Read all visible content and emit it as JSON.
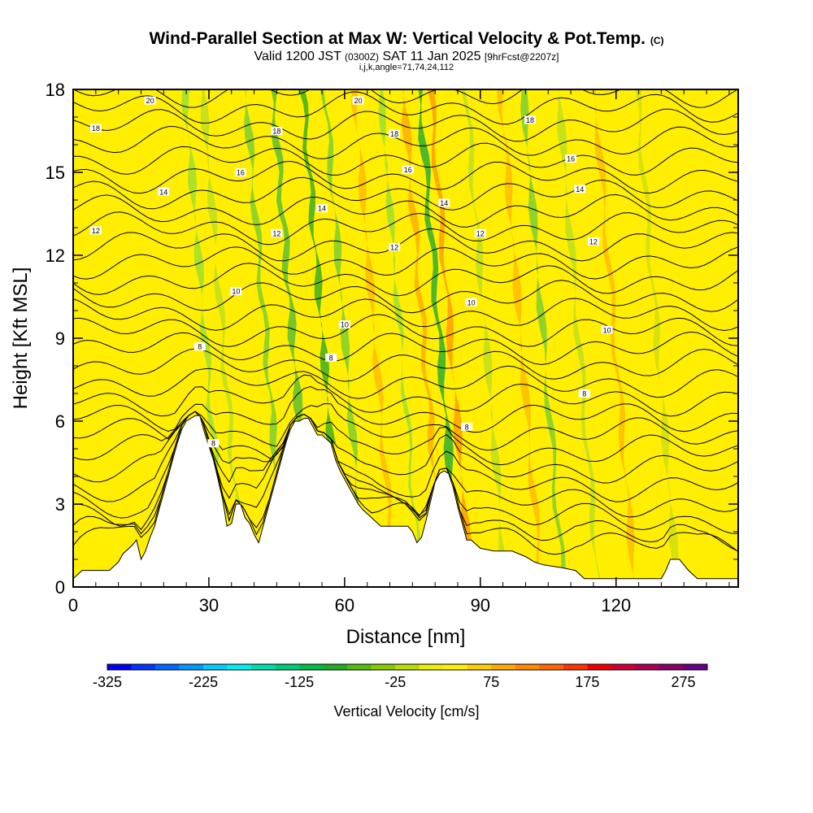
{
  "chart_data": {
    "type": "heatmap",
    "title": "Wind-Parallel Section at Max W: Vertical Velocity & Pot.Temp.",
    "title_tag": "(C)",
    "subtitle_main": "Valid 1200 JST",
    "subtitle_utc": "(0300Z)",
    "subtitle_date": "SAT 11 Jan 2025",
    "subtitle_fcst": "[9hrFcst@2207z]",
    "info_line": "i,j,k,angle=71,74,24,112",
    "xlabel": "Distance [nm]",
    "ylabel": "Height [Kft MSL]",
    "xlim": [
      0,
      147
    ],
    "ylim": [
      0,
      18
    ],
    "x_ticks": [
      "0",
      "30",
      "60",
      "90",
      "120"
    ],
    "x_tick_values": [
      0,
      30,
      60,
      90,
      120
    ],
    "y_ticks": [
      "0",
      "3",
      "6",
      "9",
      "12",
      "15",
      "18"
    ],
    "y_tick_values": [
      0,
      3,
      6,
      9,
      12,
      15,
      18
    ],
    "background_color": "#ffee00",
    "terrain": [
      [
        0,
        0.3
      ],
      [
        2,
        0.6
      ],
      [
        8,
        0.6
      ],
      [
        10,
        0.9
      ],
      [
        11,
        1.2
      ],
      [
        13,
        1.5
      ],
      [
        14,
        1.7
      ],
      [
        15,
        1.0
      ],
      [
        16,
        1.3
      ],
      [
        17,
        1.8
      ],
      [
        18,
        2.2
      ],
      [
        19,
        2.8
      ],
      [
        20,
        3.4
      ],
      [
        21,
        4.0
      ],
      [
        22,
        4.6
      ],
      [
        23,
        5.2
      ],
      [
        24,
        5.7
      ],
      [
        25,
        6.0
      ],
      [
        26,
        6.1
      ],
      [
        27,
        6.2
      ],
      [
        28,
        6.2
      ],
      [
        29,
        5.6
      ],
      [
        30,
        5.1
      ],
      [
        31,
        4.6
      ],
      [
        32,
        3.9
      ],
      [
        33,
        3.2
      ],
      [
        34,
        2.2
      ],
      [
        35,
        2.3
      ],
      [
        36,
        3.0
      ],
      [
        37,
        3.0
      ],
      [
        38,
        2.5
      ],
      [
        39,
        2.3
      ],
      [
        40,
        1.9
      ],
      [
        41,
        1.6
      ],
      [
        42,
        2.2
      ],
      [
        43,
        2.8
      ],
      [
        44,
        3.4
      ],
      [
        45,
        4.0
      ],
      [
        46,
        4.6
      ],
      [
        47,
        5.2
      ],
      [
        48,
        5.7
      ],
      [
        49,
        6.0
      ],
      [
        50,
        6.0
      ],
      [
        51,
        6.1
      ],
      [
        52,
        6.1
      ],
      [
        53,
        5.8
      ],
      [
        54,
        5.5
      ],
      [
        55,
        5.5
      ],
      [
        57,
        5.2
      ],
      [
        58,
        4.6
      ],
      [
        59,
        4.2
      ],
      [
        60,
        3.9
      ],
      [
        61,
        3.6
      ],
      [
        62,
        3.3
      ],
      [
        63,
        3.0
      ],
      [
        64,
        2.8
      ],
      [
        66,
        2.5
      ],
      [
        68,
        2.2
      ],
      [
        72,
        2.2
      ],
      [
        74,
        2.2
      ],
      [
        75,
        2.0
      ],
      [
        76,
        1.6
      ],
      [
        77,
        1.8
      ],
      [
        78,
        2.4
      ],
      [
        79,
        3.1
      ],
      [
        80,
        3.8
      ],
      [
        81,
        4.1
      ],
      [
        82,
        4.2
      ],
      [
        83,
        4.1
      ],
      [
        84,
        3.6
      ],
      [
        85,
        2.9
      ],
      [
        86,
        2.3
      ],
      [
        87,
        1.7
      ],
      [
        88,
        1.7
      ],
      [
        90,
        1.4
      ],
      [
        93,
        1.3
      ],
      [
        97,
        1.3
      ],
      [
        100,
        1.1
      ],
      [
        102,
        0.9
      ],
      [
        104,
        0.8
      ],
      [
        108,
        0.7
      ],
      [
        111,
        0.6
      ],
      [
        113,
        0.3
      ],
      [
        130,
        0.3
      ],
      [
        131,
        0.6
      ],
      [
        132,
        1.0
      ],
      [
        134,
        1.0
      ],
      [
        135,
        0.8
      ],
      [
        136,
        0.6
      ],
      [
        138,
        0.3
      ],
      [
        147,
        0.3
      ]
    ],
    "bands": [
      {
        "x": 31.5,
        "w": 0.9,
        "color": "#99dd33"
      },
      {
        "x": 36,
        "w": 0.8,
        "color": "#bbdd22"
      },
      {
        "x": 45,
        "w": 0.9,
        "color": "#77cc33"
      },
      {
        "x": 50,
        "w": 1.1,
        "color": "#55bb33"
      },
      {
        "x": 57,
        "w": 0.9,
        "color": "#33aa22"
      },
      {
        "x": 63,
        "w": 0.8,
        "color": "#77cc33"
      },
      {
        "x": 70,
        "w": 0.8,
        "color": "#ffb800"
      },
      {
        "x": 76,
        "w": 0.6,
        "color": "#99dd33"
      },
      {
        "x": 80,
        "w": 0.9,
        "color": "#ffaa00"
      },
      {
        "x": 83.5,
        "w": 1.1,
        "color": "#22aa33"
      },
      {
        "x": 87,
        "w": 0.9,
        "color": "#ff9900"
      },
      {
        "x": 95,
        "w": 0.8,
        "color": "#bbdd22"
      },
      {
        "x": 103,
        "w": 0.8,
        "color": "#ffb800"
      },
      {
        "x": 108,
        "w": 0.8,
        "color": "#77cc33"
      },
      {
        "x": 116,
        "w": 0.8,
        "color": "#bbdd22"
      },
      {
        "x": 124,
        "w": 0.8,
        "color": "#ffb800"
      },
      {
        "x": 133,
        "w": 0.8,
        "color": "#ccdd11"
      }
    ],
    "contour_labels": [
      {
        "text": "20",
        "x": 17,
        "y": 17.6
      },
      {
        "text": "20",
        "x": 63,
        "y": 17.6
      },
      {
        "text": "18",
        "x": 5,
        "y": 16.6
      },
      {
        "text": "18",
        "x": 45,
        "y": 16.5
      },
      {
        "text": "18",
        "x": 71,
        "y": 16.4
      },
      {
        "text": "18",
        "x": 101,
        "y": 16.9
      },
      {
        "text": "16",
        "x": 37,
        "y": 15.0
      },
      {
        "text": "16",
        "x": 74,
        "y": 15.1
      },
      {
        "text": "16",
        "x": 110,
        "y": 15.5
      },
      {
        "text": "14",
        "x": 20,
        "y": 14.3
      },
      {
        "text": "14",
        "x": 55,
        "y": 13.7
      },
      {
        "text": "14",
        "x": 82,
        "y": 13.9
      },
      {
        "text": "14",
        "x": 112,
        "y": 14.4
      },
      {
        "text": "12",
        "x": 5,
        "y": 12.9
      },
      {
        "text": "12",
        "x": 45,
        "y": 12.8
      },
      {
        "text": "12",
        "x": 71,
        "y": 12.3
      },
      {
        "text": "12",
        "x": 90,
        "y": 12.8
      },
      {
        "text": "12",
        "x": 115,
        "y": 12.5
      },
      {
        "text": "10",
        "x": 36,
        "y": 10.7
      },
      {
        "text": "10",
        "x": 60,
        "y": 9.5
      },
      {
        "text": "10",
        "x": 88,
        "y": 10.3
      },
      {
        "text": "10",
        "x": 118,
        "y": 9.3
      },
      {
        "text": "8",
        "x": 28,
        "y": 8.7
      },
      {
        "text": "8",
        "x": 57,
        "y": 8.3
      },
      {
        "text": "8",
        "x": 113,
        "y": 7.0
      },
      {
        "text": "8",
        "x": 31,
        "y": 5.2
      },
      {
        "text": "8",
        "x": 87,
        "y": 5.8
      }
    ],
    "colorbar": {
      "label": "Vertical Velocity [cm/s]",
      "tick_labels": [
        "-325",
        "-225",
        "-125",
        "-25",
        "75",
        "175",
        "275"
      ],
      "tick_values": [
        -325,
        -225,
        -125,
        -25,
        75,
        175,
        275
      ],
      "range": [
        -325,
        300
      ],
      "colors": [
        "#0000ee",
        "#0033ff",
        "#0066ff",
        "#0099ff",
        "#00ccff",
        "#00eeee",
        "#00ddaa",
        "#00cc77",
        "#00bb44",
        "#22aa22",
        "#55bb11",
        "#88cc00",
        "#bbdd00",
        "#eeee00",
        "#ffee00",
        "#ffcc00",
        "#ffaa00",
        "#ff8800",
        "#ff6600",
        "#ff3300",
        "#ee0000",
        "#cc0033",
        "#aa0055",
        "#880066",
        "#660088"
      ]
    }
  }
}
